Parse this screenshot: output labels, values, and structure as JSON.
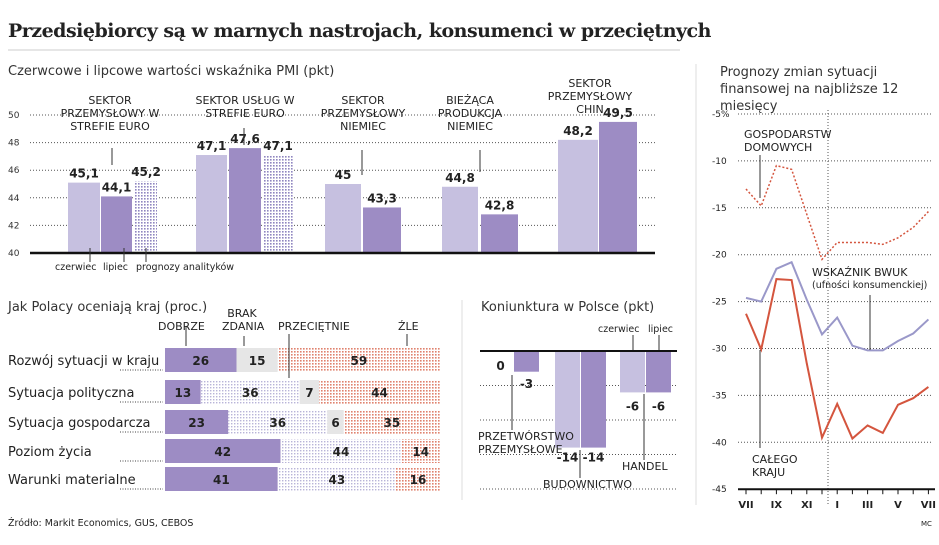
{
  "title": "Przedsiębiorcy są w marnych nastrojach, konsumenci w przeciętnych",
  "source": "Źródło: Markit Economics, GUS, CEBOS",
  "credit": "MC",
  "colors": {
    "june": "#c6c0e0",
    "july": "#9d8cc4",
    "forecast": "#8f86c0",
    "bad": "#e0826e",
    "neutral": "#e6e6e6",
    "households": "#d4553e",
    "country": "#d4553e",
    "bwuk": "#9a98c9"
  },
  "chart_data": [
    {
      "type": "bar",
      "title": "Czerwcowe i lipcowe wartości wskaźnika PMI (pkt)",
      "ylim": [
        40,
        50
      ],
      "yticks": [
        40,
        42,
        44,
        46,
        48,
        50
      ],
      "grid": true,
      "legend": [
        "czerwiec",
        "lipiec",
        "prognozy analityków"
      ],
      "categories": [
        "SEKTOR PRZEMYSŁOWY W STREFIE EURO",
        "SEKTOR USŁUG W STREFIE EURO",
        "SEKTOR PRZEMYSŁOWY NIEMIEC",
        "BIEŻĄCA PRODUKCJA NIEMIEC",
        "SEKTOR PRZEMYSŁOWY CHIN"
      ],
      "series": [
        {
          "name": "czerwiec",
          "values": [
            45.1,
            47.1,
            45,
            44.8,
            48.2
          ],
          "labels": [
            "45,1",
            "47,1",
            "45",
            "44,8",
            "48,2"
          ]
        },
        {
          "name": "lipiec",
          "values": [
            44.1,
            47.6,
            43.3,
            42.8,
            49.5
          ],
          "labels": [
            "44,1",
            "47,6",
            "43,3",
            "42,8",
            "49,5"
          ]
        },
        {
          "name": "prognozy analityków",
          "values": [
            45.2,
            47.1,
            null,
            null,
            null
          ],
          "labels": [
            "45,2",
            "47,1",
            "",
            "",
            ""
          ]
        }
      ]
    },
    {
      "type": "bar",
      "title": "Jak Polacy oceniają kraj (proc.)",
      "stacked": true,
      "legend": [
        "DOBRZE",
        "BRAK ZDANIA",
        "PRZECIĘTNIE",
        "ŹLE"
      ],
      "categories": [
        "Rozwój sytuacji w kraju",
        "Sytuacja polityczna",
        "Sytuacja gospodarcza",
        "Poziom życia",
        "Warunki materialne"
      ],
      "series": [
        {
          "name": "DOBRZE",
          "values": [
            26,
            13,
            23,
            42,
            41
          ]
        },
        {
          "name": "PRZECIĘTNIE",
          "values": [
            null,
            36,
            36,
            44,
            43
          ]
        },
        {
          "name": "BRAK ZDANIA",
          "values": [
            15,
            7,
            6,
            null,
            null
          ]
        },
        {
          "name": "ŹLE",
          "values": [
            59,
            44,
            35,
            14,
            16
          ]
        }
      ]
    },
    {
      "type": "bar",
      "title": "Koniunktura w Polsce (pkt)",
      "ylim": [
        -20,
        0
      ],
      "grid": true,
      "legend": [
        "czerwiec",
        "lipiec"
      ],
      "categories": [
        "PRZETWÓRSTWO PRZEMYSŁOWE",
        "BUDOWNICTWO",
        "HANDEL"
      ],
      "series": [
        {
          "name": "czerwiec",
          "values": [
            0,
            -14,
            -6
          ]
        },
        {
          "name": "lipiec",
          "values": [
            -3,
            -14,
            -6
          ]
        }
      ]
    },
    {
      "type": "line",
      "title": "Prognozy zmian sytuacji finansowej na najbliższe 12 miesięcy",
      "ylim": [
        -45,
        -5
      ],
      "yticks": [
        "-5%",
        "-10",
        "-15",
        "-20",
        "-25",
        "-30",
        "-35",
        "-40",
        "-45"
      ],
      "xticks": [
        "VII",
        "IX",
        "XI",
        "I",
        "III",
        "V",
        "VII"
      ],
      "x": [
        "VII",
        "VIII",
        "IX",
        "X",
        "XI",
        "XII",
        "I",
        "II",
        "III",
        "IV",
        "V",
        "VI",
        "VII"
      ],
      "series": [
        {
          "name": "GOSPODARSTW DOMOWYCH",
          "style": "dotted",
          "values": [
            -13.0,
            -14.8,
            -10.5,
            -10.9,
            -15.7,
            -20.5,
            -18.7,
            -18.7,
            -18.7,
            -18.9,
            -18.2,
            -17.1,
            -15.4
          ]
        },
        {
          "name": "WSKAŹNIK BWUK",
          "note": "(ufności konsumenckiej)",
          "values": [
            -24.6,
            -25.0,
            -21.5,
            -20.8,
            -24.8,
            -28.5,
            -26.7,
            -29.7,
            -30.2,
            -30.2,
            -29.2,
            -28.4,
            -26.9
          ]
        },
        {
          "name": "CAŁEGO KRAJU",
          "values": [
            -26.3,
            -30.1,
            -22.6,
            -22.7,
            -31.6,
            -39.5,
            -35.9,
            -39.6,
            -38.2,
            -39.0,
            -36.0,
            -35.3,
            -34.1
          ]
        }
      ]
    }
  ]
}
